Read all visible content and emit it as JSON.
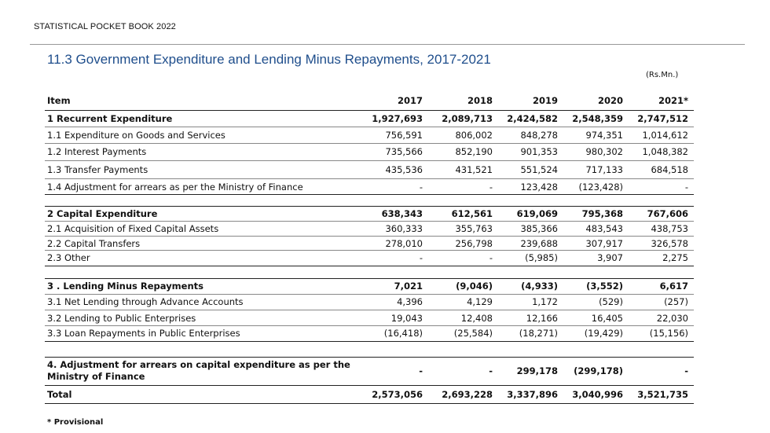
{
  "header": "STATISTICAL POCKET BOOK 2022",
  "title": "11.3 Government Expenditure and Lending Minus Repayments, 2017-2021",
  "unit": "(Rs.Mn.)",
  "columns": [
    "Item",
    "2017",
    "2018",
    "2019",
    "2020",
    "2021*"
  ],
  "rows": [
    {
      "label": "1 Recurrent Expenditure",
      "values": [
        "1,927,693",
        "2,089,713",
        "2,424,582",
        "2,548,359",
        "2,747,512"
      ]
    },
    {
      "label": "1.1 Expenditure on Goods and Services",
      "values": [
        "756,591",
        "806,002",
        "848,278",
        "974,351",
        "1,014,612"
      ]
    },
    {
      "label": "1.2 Interest Payments",
      "values": [
        "735,566",
        "852,190",
        "901,353",
        "980,302",
        "1,048,382"
      ]
    },
    {
      "label": "1.3 Transfer Payments",
      "values": [
        "435,536",
        "431,521",
        "551,524",
        "717,133",
        "684,518"
      ]
    },
    {
      "label": "1.4 Adjustment for arrears as per the Ministry of Finance",
      "values": [
        "-",
        "-",
        "123,428",
        "(123,428)",
        "-"
      ]
    },
    {
      "label": "2 Capital Expenditure",
      "values": [
        "638,343",
        "612,561",
        "619,069",
        "795,368",
        "767,606"
      ]
    },
    {
      "label": "2.1  Acquisition of Fixed Capital Assets",
      "values": [
        "360,333",
        "355,763",
        "385,366",
        "483,543",
        "438,753"
      ]
    },
    {
      "label": "2.2 Capital Transfers",
      "values": [
        "278,010",
        "256,798",
        "239,688",
        "307,917",
        "326,578"
      ]
    },
    {
      "label": "2.3  Other",
      "values": [
        "-",
        "-",
        "(5,985)",
        "3,907",
        "2,275"
      ]
    },
    {
      "label": "3 . Lending Minus Repayments",
      "values": [
        "7,021",
        "(9,046)",
        "(4,933)",
        "(3,552)",
        "6,617"
      ]
    },
    {
      "label": "3.1 Net Lending through Advance Accounts",
      "values": [
        "4,396",
        "4,129",
        "1,172",
        "(529)",
        "(257)"
      ]
    },
    {
      "label": "3.2 Lending to Public Enterprises",
      "values": [
        "19,043",
        "12,408",
        "12,166",
        "16,405",
        "22,030"
      ]
    },
    {
      "label": "3.3 Loan Repayments in Public Enterprises",
      "values": [
        "(16,418)",
        "(25,584)",
        "(18,271)",
        "(19,429)",
        "(15,156)"
      ]
    },
    {
      "label": "4. Adjustment for arrears on capital expenditure as per the Ministry of Finance",
      "values": [
        "-",
        "-",
        "299,178",
        "(299,178)",
        "-"
      ]
    },
    {
      "label": "Total",
      "values": [
        "2,573,056",
        "2,693,228",
        "3,337,896",
        "3,040,996",
        "3,521,735"
      ]
    }
  ],
  "footnote": "* Provisional"
}
